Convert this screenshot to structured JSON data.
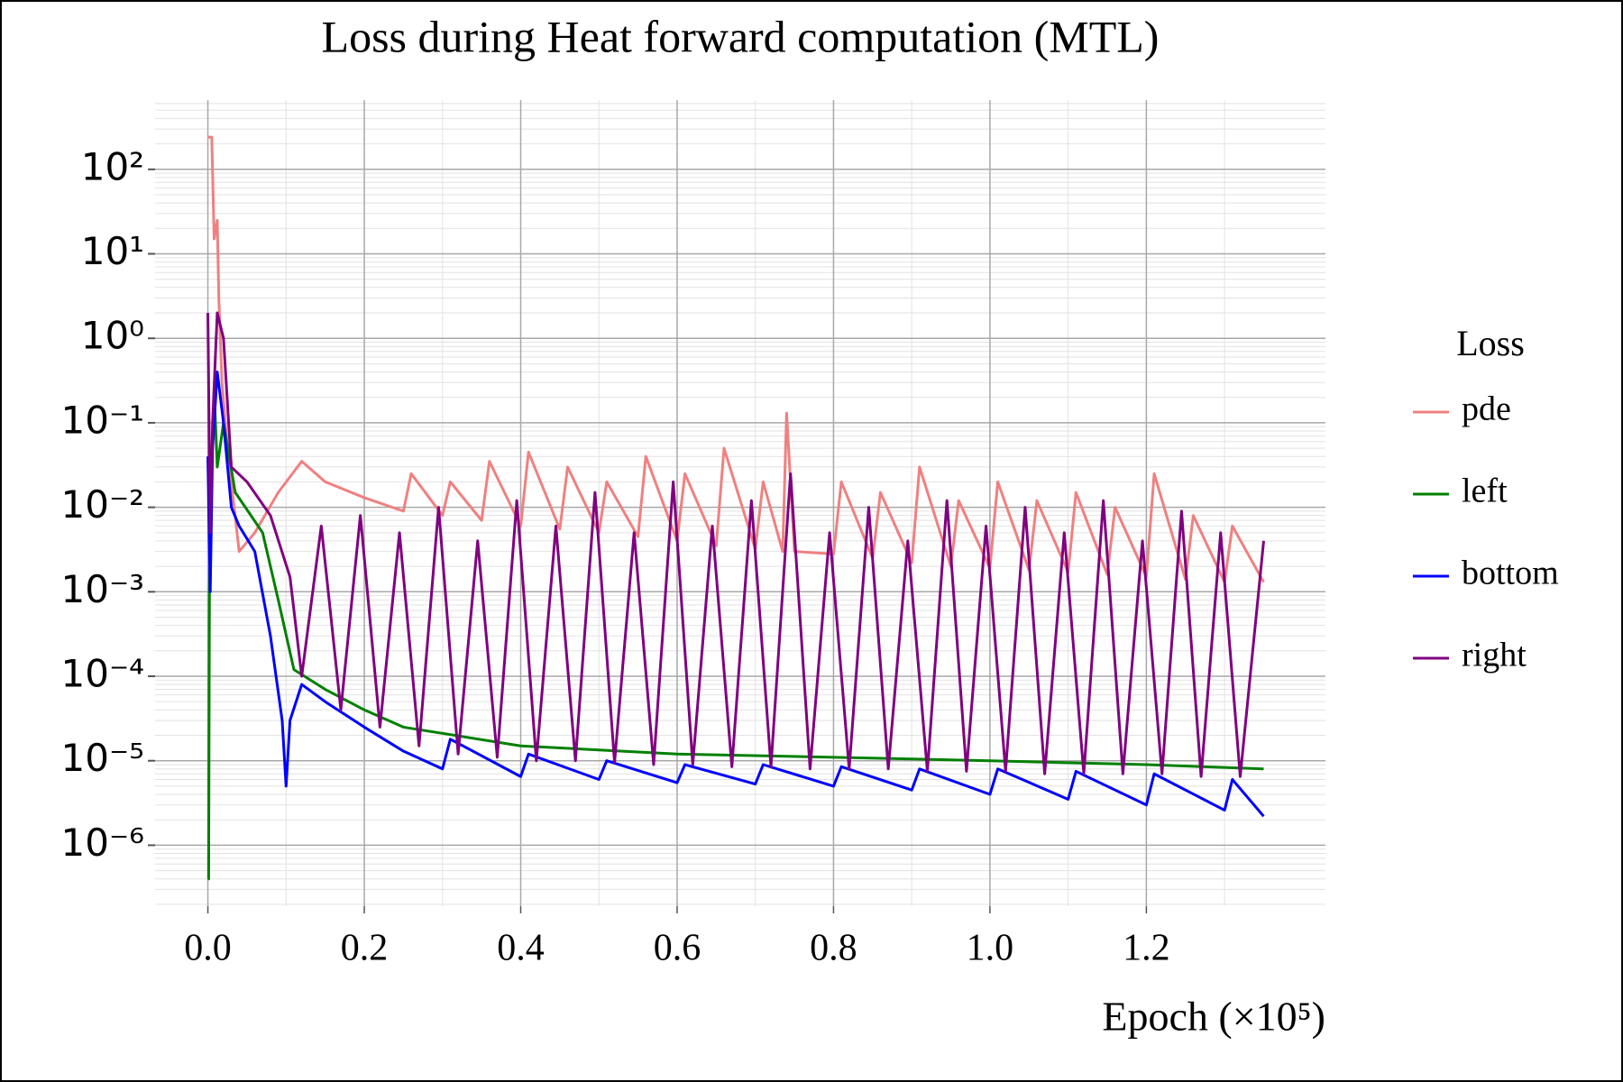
{
  "chart_data": {
    "type": "line",
    "title": "Loss during Heat forward computation (MTL)",
    "x_label": "Epoch (×10⁵)",
    "legend_title": "Loss",
    "legend": "right",
    "log_y": true,
    "grid": true,
    "minor_grid": true,
    "xlim": [
      -0.0675,
      1.429
    ],
    "ylim": [
      1.9e-07,
      660
    ],
    "xticks": [
      {
        "value": 0,
        "label": "0.0"
      },
      0.2,
      0.4,
      0.6,
      0.8,
      {
        "value": 1,
        "label": "1.0"
      },
      1.2
    ],
    "yticks": [
      {
        "value": 100,
        "label": "10²"
      },
      {
        "value": 10,
        "label": "10¹"
      },
      {
        "value": 1,
        "label": "10⁰"
      },
      {
        "value": 0.1,
        "label": "10⁻¹"
      },
      {
        "value": 0.01,
        "label": "10⁻²"
      },
      {
        "value": 0.001,
        "label": "10⁻³"
      },
      {
        "value": 0.0001,
        "label": "10⁻⁴"
      },
      {
        "value": 1e-05,
        "label": "10⁻⁵"
      },
      {
        "value": 1e-06,
        "label": "10⁻⁶"
      }
    ],
    "series": [
      {
        "name": "pde",
        "color": "#f08080",
        "x": [
          0,
          0.005,
          0.008,
          0.012,
          0.014,
          0.018,
          0.025,
          0.04,
          0.06,
          0.09,
          0.12,
          0.15,
          0.2,
          0.25,
          0.26,
          0.3,
          0.31,
          0.35,
          0.36,
          0.4,
          0.41,
          0.45,
          0.46,
          0.5,
          0.51,
          0.55,
          0.56,
          0.6,
          0.61,
          0.65,
          0.66,
          0.7,
          0.71,
          0.735,
          0.74,
          0.75,
          0.8,
          0.81,
          0.85,
          0.86,
          0.9,
          0.91,
          0.95,
          0.96,
          1.0,
          1.01,
          1.05,
          1.06,
          1.1,
          1.11,
          1.15,
          1.16,
          1.2,
          1.21,
          1.25,
          1.26,
          1.3,
          1.31,
          1.35
        ],
        "values": [
          240,
          240,
          15,
          25,
          3,
          0.3,
          0.05,
          0.003,
          0.005,
          0.015,
          0.035,
          0.02,
          0.013,
          0.009,
          0.025,
          0.008,
          0.02,
          0.007,
          0.035,
          0.006,
          0.045,
          0.0055,
          0.03,
          0.005,
          0.02,
          0.0045,
          0.04,
          0.004,
          0.025,
          0.0035,
          0.05,
          0.0032,
          0.02,
          0.003,
          0.13,
          0.003,
          0.0028,
          0.02,
          0.0025,
          0.015,
          0.0022,
          0.03,
          0.002,
          0.012,
          0.0019,
          0.02,
          0.0018,
          0.012,
          0.0017,
          0.015,
          0.0016,
          0.01,
          0.0015,
          0.025,
          0.0014,
          0.008,
          0.0013,
          0.006,
          0.0013
        ]
      },
      {
        "name": "left",
        "color": "#008000",
        "x": [
          0,
          0.001,
          0.002,
          0.004,
          0.008,
          0.012,
          0.02,
          0.035,
          0.07,
          0.09,
          0.11,
          0.15,
          0.2,
          0.25,
          0.4,
          0.6,
          0.8,
          1.0,
          1.2,
          1.35
        ],
        "values": [
          4e-07,
          4e-07,
          0.001,
          0.02,
          0.25,
          0.03,
          0.1,
          0.015,
          0.005,
          0.0008,
          0.00012,
          7e-05,
          4e-05,
          2.5e-05,
          1.5e-05,
          1.2e-05,
          1.1e-05,
          1e-05,
          9e-06,
          8e-06
        ]
      },
      {
        "name": "bottom",
        "color": "#0000ff",
        "x": [
          0,
          0.003,
          0.006,
          0.012,
          0.02,
          0.03,
          0.04,
          0.06,
          0.08,
          0.095,
          0.1,
          0.105,
          0.12,
          0.15,
          0.2,
          0.25,
          0.3,
          0.31,
          0.4,
          0.41,
          0.5,
          0.51,
          0.6,
          0.61,
          0.7,
          0.71,
          0.8,
          0.81,
          0.9,
          0.91,
          1.0,
          1.01,
          1.1,
          1.11,
          1.2,
          1.21,
          1.3,
          1.31,
          1.35
        ],
        "values": [
          0.04,
          0.001,
          0.05,
          0.4,
          0.1,
          0.01,
          0.006,
          0.003,
          0.0003,
          3e-05,
          5e-06,
          3e-05,
          8e-05,
          5e-05,
          2.5e-05,
          1.3e-05,
          8e-06,
          1.8e-05,
          6.5e-06,
          1.2e-05,
          6e-06,
          1e-05,
          5.5e-06,
          9e-06,
          5.3e-06,
          9e-06,
          5e-06,
          8.5e-06,
          4.5e-06,
          8e-06,
          4e-06,
          8e-06,
          3.5e-06,
          7.5e-06,
          3e-06,
          7e-06,
          2.6e-06,
          6e-06,
          2.2e-06
        ]
      },
      {
        "name": "right",
        "color": "#800080",
        "x": [
          0,
          0.003,
          0.006,
          0.012,
          0.02,
          0.03,
          0.05,
          0.08,
          0.105,
          0.12,
          0.145,
          0.17,
          0.195,
          0.22,
          0.245,
          0.27,
          0.295,
          0.32,
          0.345,
          0.37,
          0.395,
          0.42,
          0.445,
          0.47,
          0.495,
          0.52,
          0.545,
          0.57,
          0.595,
          0.62,
          0.645,
          0.67,
          0.695,
          0.72,
          0.745,
          0.77,
          0.795,
          0.82,
          0.845,
          0.87,
          0.895,
          0.92,
          0.945,
          0.97,
          0.995,
          1.02,
          1.045,
          1.07,
          1.095,
          1.12,
          1.145,
          1.17,
          1.195,
          1.22,
          1.245,
          1.27,
          1.295,
          1.32,
          1.35
        ],
        "values": [
          2,
          0.005,
          0.1,
          2,
          1,
          0.03,
          0.02,
          0.008,
          0.0015,
          0.0001,
          0.006,
          4e-05,
          0.008,
          2.5e-05,
          0.005,
          1.5e-05,
          0.01,
          1.2e-05,
          0.004,
          1.1e-05,
          0.012,
          1e-05,
          0.006,
          1e-05,
          0.015,
          9.5e-06,
          0.005,
          9e-06,
          0.02,
          9e-06,
          0.006,
          8.5e-06,
          0.012,
          8.5e-06,
          0.025,
          8e-06,
          0.005,
          8e-06,
          0.01,
          8e-06,
          0.004,
          7.5e-06,
          0.012,
          7.5e-06,
          0.006,
          7.5e-06,
          0.01,
          7e-06,
          0.005,
          7e-06,
          0.012,
          7e-06,
          0.004,
          7e-06,
          0.009,
          6.5e-06,
          0.005,
          6.5e-06,
          0.004
        ]
      }
    ]
  }
}
